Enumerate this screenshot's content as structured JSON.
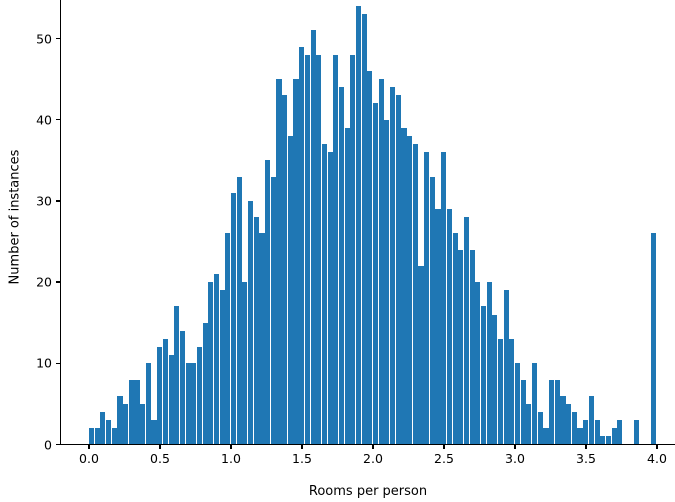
{
  "chart_data": {
    "type": "bar",
    "subtype": "histogram",
    "title": "",
    "xlabel": "Rooms per person",
    "ylabel": "Number of instances",
    "bar_color": "#1f77b4",
    "axis_color": "#000000",
    "background_color": "#ffffff",
    "grid": false,
    "legend": false,
    "bin_start": 0.0,
    "bin_width": 0.04,
    "xlim": [
      -0.2,
      4.2
    ],
    "ylim": [
      0,
      54.8
    ],
    "x_tick_labels": [
      "0.0",
      "0.5",
      "1.0",
      "1.5",
      "2.0",
      "2.5",
      "3.0",
      "3.5",
      "4.0"
    ],
    "x_tick_values": [
      0.0,
      0.5,
      1.0,
      1.5,
      2.0,
      2.5,
      3.0,
      3.5,
      4.0
    ],
    "y_tick_labels": [
      "0",
      "10",
      "20",
      "30",
      "40",
      "50"
    ],
    "y_tick_values": [
      0,
      10,
      20,
      30,
      40,
      50
    ],
    "values": [
      2,
      2,
      4,
      3,
      2,
      6,
      5,
      8,
      8,
      5,
      10,
      3,
      12,
      13,
      11,
      17,
      14,
      10,
      10,
      12,
      15,
      20,
      21,
      19,
      26,
      31,
      33,
      20,
      30,
      28,
      26,
      35,
      33,
      45,
      43,
      38,
      45,
      49,
      48,
      51,
      48,
      37,
      36,
      48,
      44,
      39,
      48,
      54,
      53,
      46,
      42,
      45,
      40,
      44,
      43,
      39,
      38,
      37,
      22,
      36,
      33,
      29,
      36,
      29,
      26,
      24,
      28,
      24,
      20,
      17,
      20,
      16,
      13,
      19,
      13,
      10,
      8,
      5,
      10,
      4,
      2,
      8,
      8,
      6,
      5,
      4,
      2,
      3,
      6,
      3,
      1,
      1,
      2,
      3,
      0,
      0,
      3,
      0,
      0,
      26
    ]
  }
}
